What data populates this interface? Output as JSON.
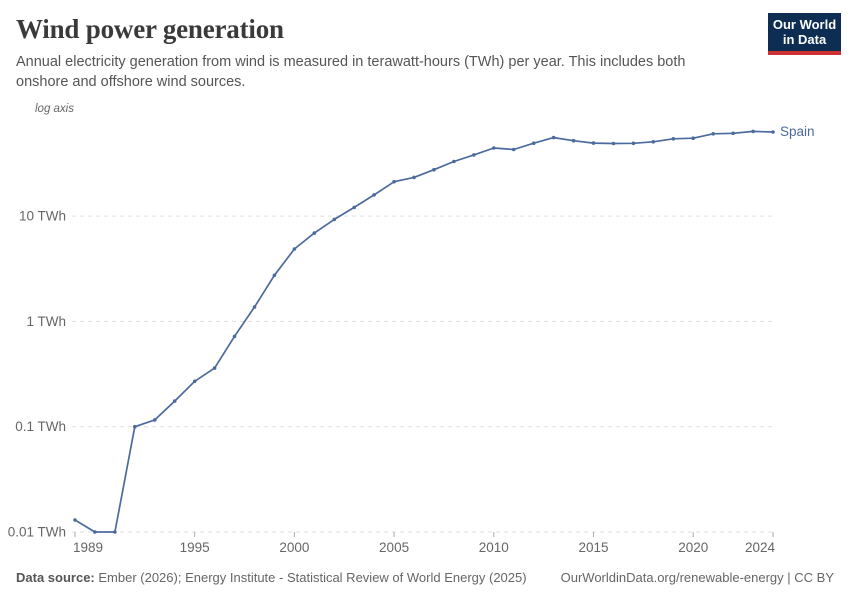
{
  "header": {
    "title": "Wind power generation",
    "subtitle": "Annual electricity generation from wind is measured in terawatt-hours (TWh) per year. This includes both onshore and offshore wind sources."
  },
  "logo": {
    "line1": "Our World",
    "line2": "in Data"
  },
  "chart": {
    "log_axis_label": "log axis",
    "series_label": "Spain"
  },
  "chart_data": {
    "type": "line",
    "title": "Wind power generation",
    "unit": "TWh",
    "yscale": "log",
    "grid": true,
    "legend_position": "end-of-line",
    "xlim": [
      1989,
      2024
    ],
    "ylim": [
      0.01,
      70
    ],
    "x_ticks": [
      1989,
      1995,
      2000,
      2005,
      2010,
      2015,
      2020,
      2024
    ],
    "y_ticks": [
      {
        "value": 10,
        "label": "10 TWh"
      },
      {
        "value": 1,
        "label": "1 TWh"
      },
      {
        "value": 0.1,
        "label": "0.1 TWh"
      },
      {
        "value": 0.01,
        "label": "0.01 TWh"
      }
    ],
    "x": [
      1989,
      1990,
      1991,
      1992,
      1993,
      1994,
      1995,
      1996,
      1997,
      1998,
      1999,
      2000,
      2001,
      2002,
      2003,
      2004,
      2005,
      2006,
      2007,
      2008,
      2009,
      2010,
      2011,
      2012,
      2013,
      2014,
      2015,
      2016,
      2017,
      2018,
      2019,
      2020,
      2021,
      2022,
      2023,
      2024
    ],
    "series": [
      {
        "name": "Spain",
        "values": [
          0.013,
          0.01,
          0.01,
          0.1,
          0.116,
          0.175,
          0.27,
          0.36,
          0.72,
          1.37,
          2.74,
          4.87,
          6.9,
          9.3,
          12.1,
          15.9,
          21.2,
          23.3,
          27.6,
          33.0,
          38.1,
          44.3,
          42.9,
          49.2,
          55.6,
          52.0,
          49.3,
          48.9,
          49.1,
          50.8,
          54.2,
          54.9,
          60.5,
          61.1,
          63.7,
          62.9
        ]
      }
    ]
  },
  "footer": {
    "datasource_label": "Data source:",
    "datasource_text": " Ember (2026); Energy Institute - Statistical Review of World Energy (2025)",
    "credit": "OurWorldinData.org/renewable-energy | CC BY"
  },
  "colors": {
    "line": "#4c6a9d",
    "grid": "#dddddd",
    "tick": "#aaaaaa",
    "axis_text": "#666666"
  }
}
